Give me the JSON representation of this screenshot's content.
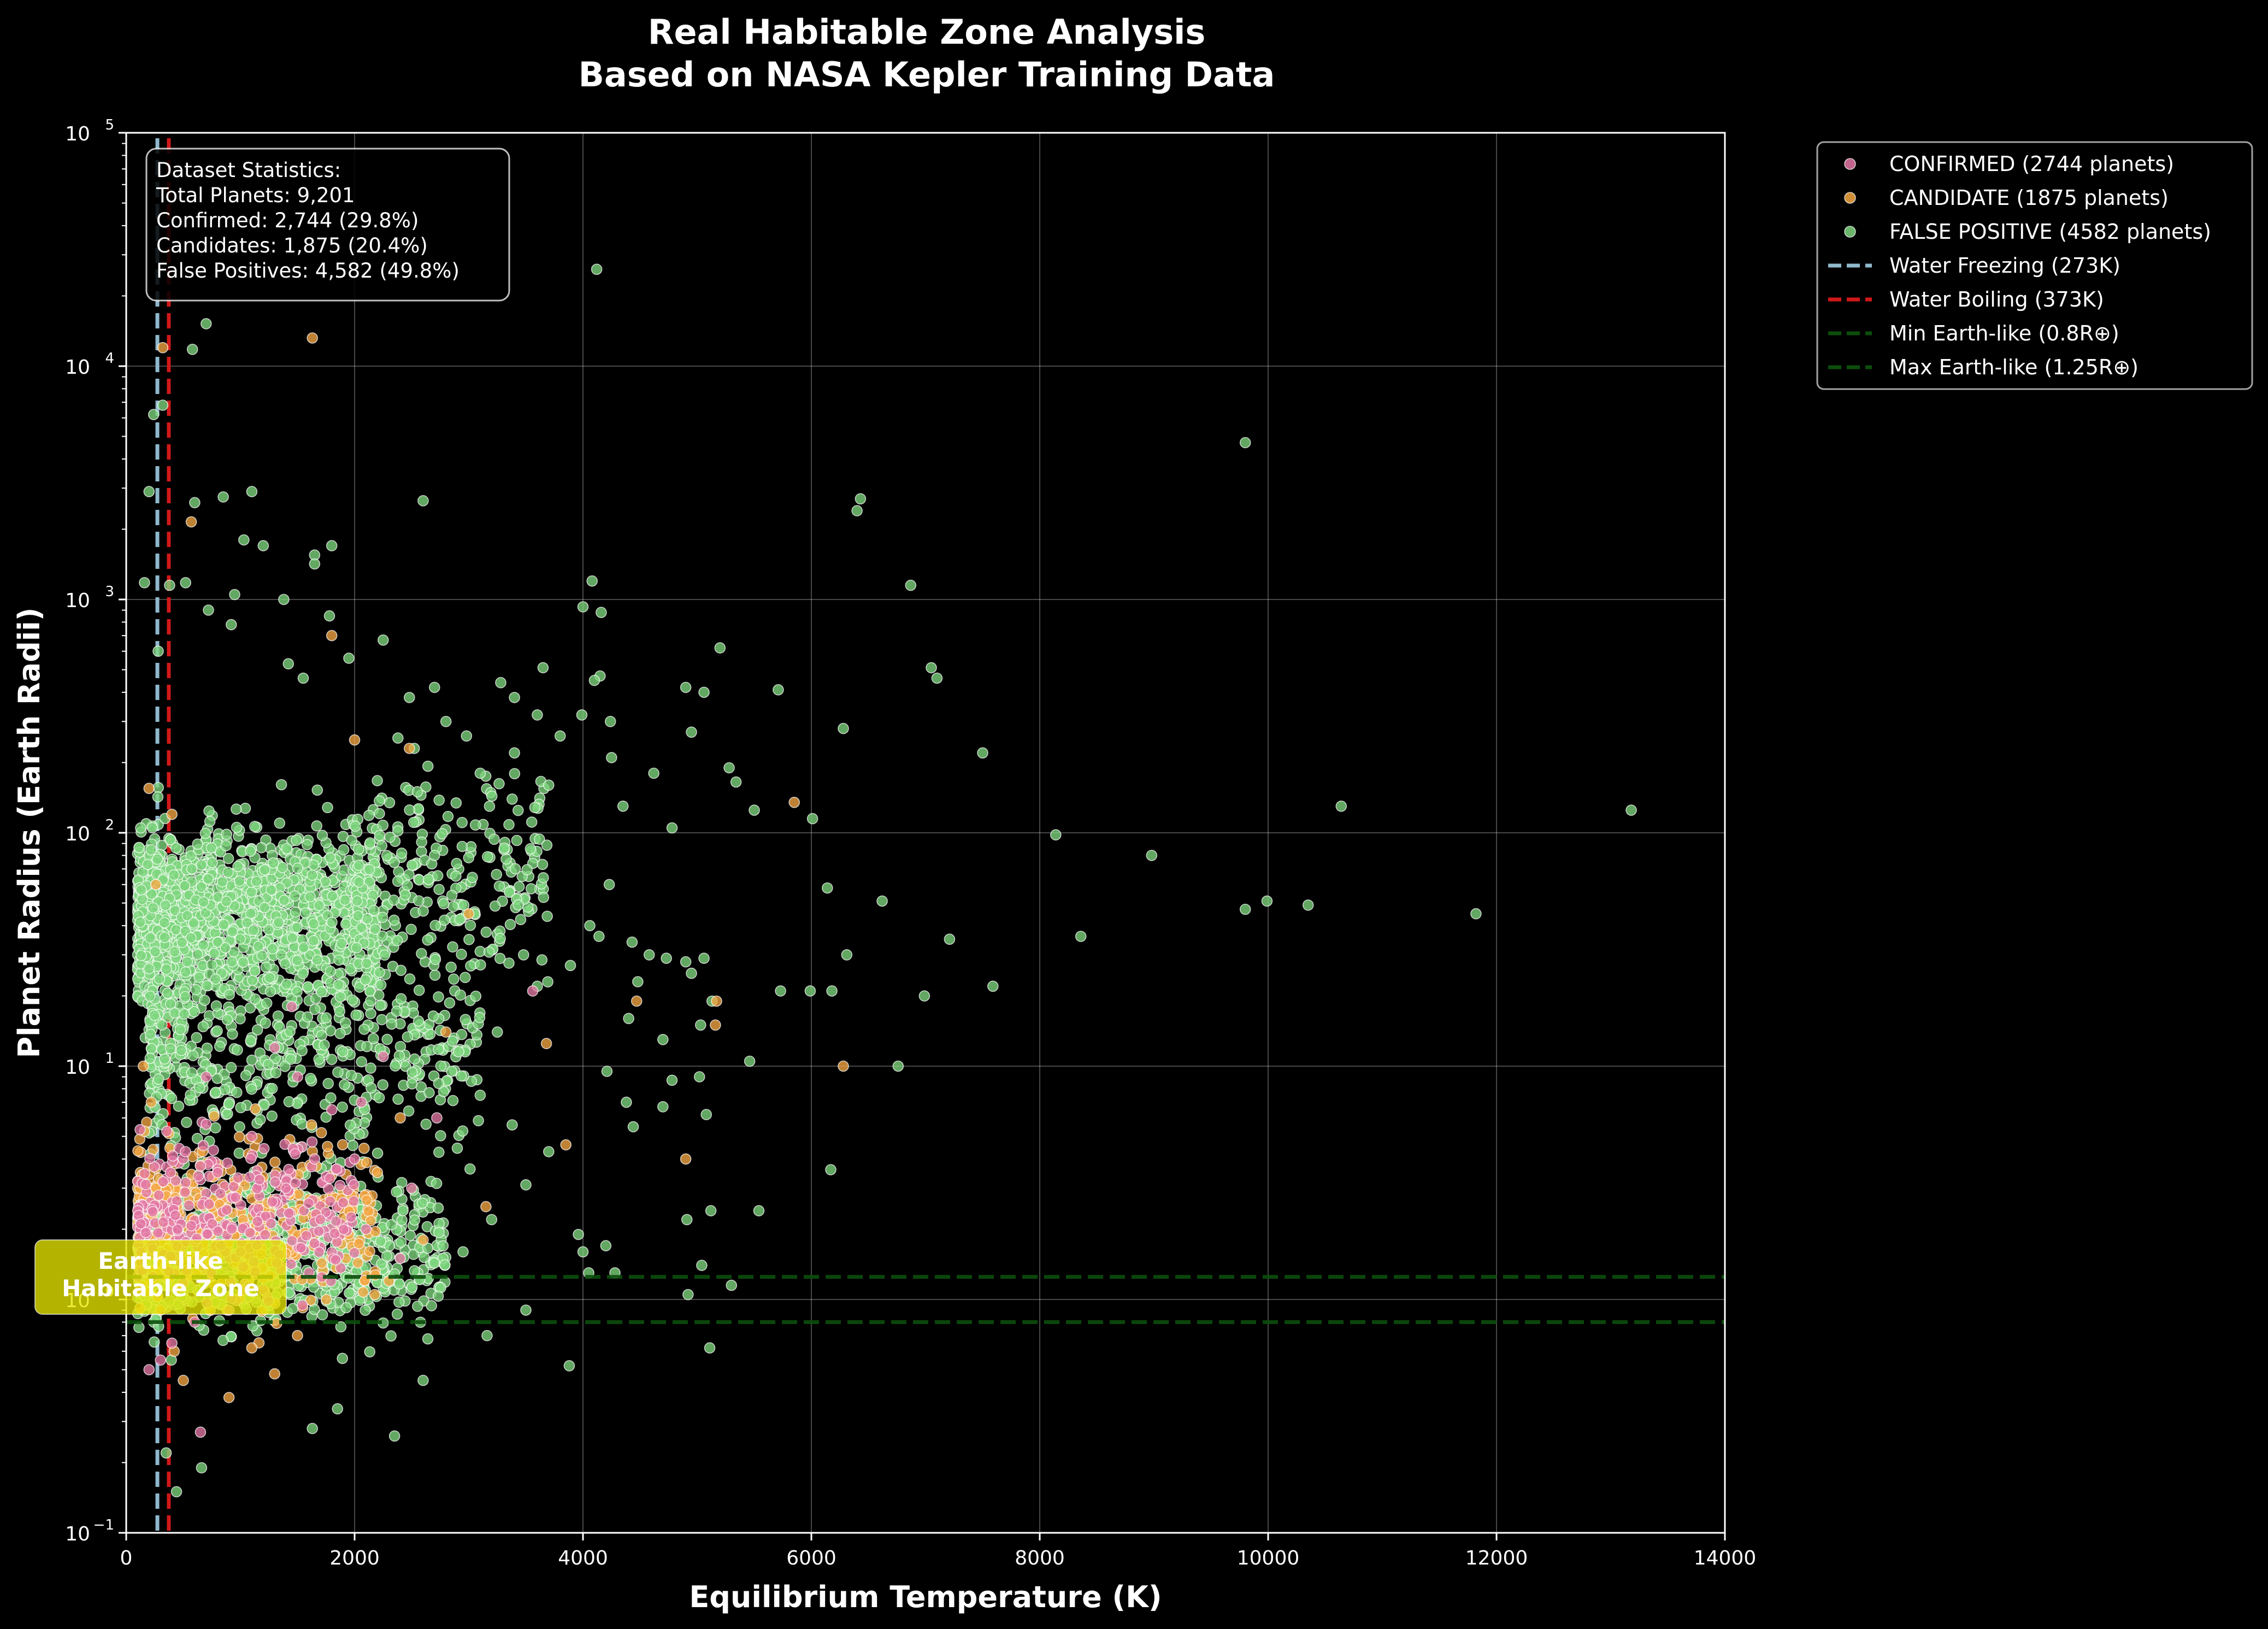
{
  "chart_data": {
    "type": "scatter",
    "title_lines": [
      "Real Habitable Zone Analysis",
      "Based on NASA Kepler Training Data"
    ],
    "xlabel": "Equilibrium Temperature (K)",
    "ylabel": "Planet Radius (Earth Radii)",
    "xlim": [
      0,
      14000
    ],
    "ylim": [
      0.1,
      100000
    ],
    "y_scale": "log",
    "x_ticks": [
      "0",
      "2000",
      "4000",
      "6000",
      "8000",
      "10000",
      "12000",
      "14000"
    ],
    "y_ticks": [
      {
        "base": "10",
        "exp": "−1"
      },
      {
        "base": "10",
        "exp": "0"
      },
      {
        "base": "10",
        "exp": "1"
      },
      {
        "base": "10",
        "exp": "2"
      },
      {
        "base": "10",
        "exp": "3"
      },
      {
        "base": "10",
        "exp": "4"
      },
      {
        "base": "10",
        "exp": "5"
      }
    ],
    "grid": true,
    "legend_position": "outside-top-right",
    "legend": [
      {
        "label": "CONFIRMED (2744 planets)",
        "kind": "marker",
        "color": "#e377a4"
      },
      {
        "label": "CANDIDATE (1875 planets)",
        "kind": "marker",
        "color": "#f5a742"
      },
      {
        "label": "FALSE POSITIVE (4582 planets)",
        "kind": "marker",
        "color": "#7ed67e"
      },
      {
        "label": "Water Freezing (273K)",
        "kind": "line",
        "color": "#8fb8cc"
      },
      {
        "label": "Water Boiling (373K)",
        "kind": "line",
        "color": "#d01818"
      },
      {
        "label": "Min Earth-like (0.8R⊕)",
        "kind": "line",
        "color": "#0c4e0c"
      },
      {
        "label": "Max Earth-like (1.25R⊕)",
        "kind": "line",
        "color": "#0c4e0c"
      }
    ],
    "reference_lines": [
      {
        "orientation": "vertical",
        "x": 273,
        "color": "#8fb8cc"
      },
      {
        "orientation": "vertical",
        "x": 373,
        "color": "#d01818"
      },
      {
        "orientation": "horizontal",
        "y": 0.8,
        "color": "#0c4e0c"
      },
      {
        "orientation": "horizontal",
        "y": 1.25,
        "color": "#0c4e0c"
      }
    ],
    "stats_box": [
      "Dataset Statistics:",
      "Total Planets: 9,201",
      "Confirmed: 2,744 (29.8%)",
      "Candidates: 1,875 (20.4%)",
      "False Positives: 4,582 (49.8%)"
    ],
    "habitable_zone_label": [
      "Earth-like",
      "Habitable Zone"
    ],
    "series": [
      {
        "name": "FALSE POSITIVE",
        "color": "#7ed67e",
        "points": [
          [
            4120,
            26000
          ],
          [
            700,
            15200
          ],
          [
            580,
            11800
          ],
          [
            240,
            6200
          ],
          [
            320,
            6800
          ],
          [
            9800,
            4700
          ],
          [
            1100,
            2900
          ],
          [
            850,
            2750
          ],
          [
            2600,
            2650
          ],
          [
            6430,
            2700
          ],
          [
            6400,
            2400
          ],
          [
            1650,
            1550
          ],
          [
            1030,
            1800
          ],
          [
            1200,
            1700
          ],
          [
            1800,
            1700
          ],
          [
            1650,
            1420
          ],
          [
            160,
            1180
          ],
          [
            520,
            1180
          ],
          [
            4080,
            1200
          ],
          [
            6870,
            1150
          ],
          [
            950,
            1050
          ],
          [
            1380,
            1000
          ],
          [
            4000,
            930
          ],
          [
            4160,
            880
          ],
          [
            2250,
            670
          ],
          [
            1950,
            560
          ],
          [
            5200,
            620
          ],
          [
            7050,
            510
          ],
          [
            7100,
            460
          ],
          [
            4150,
            470
          ],
          [
            4100,
            450
          ],
          [
            3650,
            510
          ],
          [
            3400,
            380
          ],
          [
            3280,
            440
          ],
          [
            4240,
            300
          ],
          [
            3990,
            320
          ],
          [
            4900,
            420
          ],
          [
            4950,
            270
          ],
          [
            5060,
            400
          ],
          [
            6280,
            280
          ],
          [
            5710,
            410
          ],
          [
            7500,
            220
          ],
          [
            4250,
            210
          ],
          [
            4620,
            180
          ],
          [
            5280,
            190
          ],
          [
            5340,
            165
          ],
          [
            10640,
            130
          ],
          [
            13180,
            125
          ],
          [
            6010,
            115
          ],
          [
            5500,
            125
          ],
          [
            4350,
            130
          ],
          [
            4780,
            105
          ],
          [
            8140,
            98
          ],
          [
            8980,
            80
          ],
          [
            6140,
            58
          ],
          [
            4230,
            60
          ],
          [
            6620,
            51
          ],
          [
            9800,
            47
          ],
          [
            9990,
            51
          ],
          [
            10350,
            49
          ],
          [
            11820,
            45
          ],
          [
            4060,
            40
          ],
          [
            4140,
            36
          ],
          [
            4430,
            34
          ],
          [
            8360,
            36
          ],
          [
            7210,
            35
          ],
          [
            4580,
            30
          ],
          [
            4730,
            29
          ],
          [
            4900,
            28
          ],
          [
            5060,
            29
          ],
          [
            6310,
            30
          ],
          [
            3890,
            27
          ],
          [
            4950,
            25
          ],
          [
            5130,
            19
          ],
          [
            5990,
            21
          ],
          [
            6180,
            21
          ],
          [
            5730,
            21
          ],
          [
            6990,
            20
          ],
          [
            7590,
            22
          ],
          [
            4480,
            23
          ],
          [
            4700,
            13
          ],
          [
            4400,
            16
          ],
          [
            5030,
            15
          ],
          [
            5460,
            10.5
          ],
          [
            6760,
            10
          ],
          [
            4210,
            9.5
          ],
          [
            4780,
            8.7
          ],
          [
            5020,
            9
          ],
          [
            4380,
            7
          ],
          [
            4700,
            6.7
          ],
          [
            5080,
            6.2
          ],
          [
            4440,
            5.5
          ],
          [
            6170,
            3.6
          ],
          [
            4910,
            2.2
          ],
          [
            5120,
            2.4
          ],
          [
            5540,
            2.4
          ],
          [
            3960,
            1.9
          ],
          [
            4000,
            1.6
          ],
          [
            4200,
            1.7
          ],
          [
            4050,
            1.3
          ],
          [
            4280,
            1.3
          ],
          [
            5040,
            1.4
          ],
          [
            5300,
            1.15
          ],
          [
            4920,
            1.05
          ],
          [
            5110,
            0.62
          ],
          [
            3880,
            0.52
          ],
          [
            2350,
            0.26
          ],
          [
            660,
            0.19
          ],
          [
            440,
            0.15
          ],
          [
            350,
            0.22
          ],
          [
            1630,
            0.28
          ],
          [
            1850,
            0.34
          ],
          [
            2600,
            0.45
          ],
          [
            3160,
            0.7
          ],
          [
            3500,
            0.9
          ],
          [
            2950,
            1.6
          ],
          [
            3200,
            2.2
          ],
          [
            3500,
            3.1
          ],
          [
            3700,
            4.3
          ],
          [
            3380,
            5.6
          ],
          [
            3100,
            7.5
          ],
          [
            2850,
            9.5
          ],
          [
            3250,
            14
          ],
          [
            3600,
            22
          ],
          [
            3480,
            30
          ],
          [
            3050,
            45
          ],
          [
            2700,
            80
          ],
          [
            2550,
            150
          ],
          [
            2800,
            300
          ],
          [
            3100,
            180
          ],
          [
            3400,
            220
          ],
          [
            3700,
            160
          ],
          [
            3800,
            260
          ],
          [
            600,
            2600
          ],
          [
            380,
            1150
          ],
          [
            2480,
            380
          ],
          [
            2700,
            420
          ],
          [
            1550,
            460
          ],
          [
            2980,
            260
          ],
          [
            3600,
            320
          ],
          [
            1420,
            530
          ],
          [
            920,
            780
          ],
          [
            1780,
            850
          ],
          [
            720,
            900
          ],
          [
            280,
            600
          ],
          [
            200,
            2900
          ]
        ]
      },
      {
        "name": "CANDIDATE",
        "color": "#f5a742",
        "points": [
          [
            320,
            12000
          ],
          [
            1630,
            13200
          ],
          [
            570,
            2150
          ],
          [
            1800,
            700
          ],
          [
            2000,
            250
          ],
          [
            2480,
            230
          ],
          [
            5850,
            135
          ],
          [
            4470,
            19
          ],
          [
            5160,
            15
          ],
          [
            5170,
            19
          ],
          [
            6280,
            10
          ],
          [
            4900,
            4
          ],
          [
            3850,
            4.6
          ],
          [
            3680,
            12.5
          ],
          [
            2800,
            14
          ],
          [
            3000,
            45
          ],
          [
            2400,
            6
          ],
          [
            2200,
            3.5
          ],
          [
            3150,
            2.5
          ],
          [
            2600,
            1.8
          ],
          [
            2300,
            1.2
          ],
          [
            1950,
            1.9
          ],
          [
            1500,
            0.7
          ],
          [
            420,
            0.6
          ],
          [
            300,
            0.9
          ],
          [
            150,
            10
          ],
          [
            220,
            7
          ],
          [
            260,
            3
          ],
          [
            120,
            3
          ],
          [
            350,
            1.9
          ],
          [
            500,
            0.45
          ],
          [
            900,
            0.38
          ],
          [
            1100,
            0.62
          ],
          [
            1300,
            0.48
          ],
          [
            200,
            155
          ],
          [
            400,
            120
          ],
          [
            260,
            60
          ]
        ]
      },
      {
        "name": "CONFIRMED",
        "color": "#e377a4",
        "points": [
          [
            3560,
            21
          ],
          [
            2720,
            6
          ],
          [
            1500,
            9
          ],
          [
            2060,
            7
          ],
          [
            1800,
            6.5
          ],
          [
            1650,
            4
          ],
          [
            1400,
            3
          ],
          [
            1900,
            2.6
          ],
          [
            2100,
            2
          ],
          [
            2400,
            1.5
          ],
          [
            1200,
            1.1
          ],
          [
            900,
            0.9
          ],
          [
            600,
            0.8
          ],
          [
            400,
            0.65
          ],
          [
            300,
            0.55
          ],
          [
            200,
            0.5
          ],
          [
            650,
            0.27
          ],
          [
            1300,
            12
          ],
          [
            1100,
            5
          ],
          [
            800,
            3.5
          ],
          [
            1700,
            2.2
          ],
          [
            450,
            2
          ],
          [
            1000,
            1.6
          ],
          [
            700,
            9
          ],
          [
            1450,
            18
          ],
          [
            2250,
            11
          ],
          [
            2000,
            4
          ],
          [
            1600,
            1.3
          ],
          [
            2500,
            3
          ]
        ]
      }
    ]
  }
}
